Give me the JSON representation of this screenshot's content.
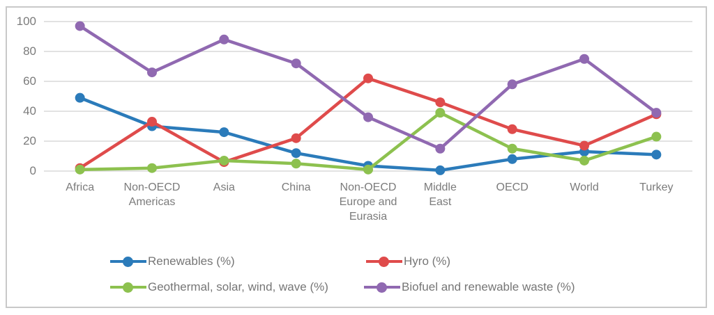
{
  "window": {
    "background_color": "#ffffff",
    "frame_border_color": "#c9c9c9"
  },
  "chart_data": {
    "type": "line",
    "title": "",
    "xlabel": "",
    "ylabel": "",
    "grid": "horizontal",
    "gridline_color": "#d9d9d9",
    "axis_text_color": "#7b7b7b",
    "legend_text_color": "#767676",
    "legend_position": "bottom",
    "y_axis": {
      "min": 0,
      "max": 100,
      "tick_interval": 20,
      "tick_labels": [
        "0",
        "20",
        "40",
        "60",
        "80",
        "100"
      ]
    },
    "categories": [
      "Africa",
      "Non-OECD Americas",
      "Asia",
      "China",
      "Non-OECD Europe and Eurasia",
      "Middle East",
      "OECD",
      "World",
      "Turkey"
    ],
    "category_label_lines": [
      [
        "Africa"
      ],
      [
        "Non-OECD",
        "Americas"
      ],
      [
        "Asia"
      ],
      [
        "China"
      ],
      [
        "Non-OECD",
        "Europe and",
        "Eurasia"
      ],
      [
        "Middle",
        "East"
      ],
      [
        "OECD"
      ],
      [
        "World"
      ],
      [
        "Turkey"
      ]
    ],
    "series": [
      {
        "name": "Renewables (%)",
        "color": "#2b7bba",
        "values": [
          49,
          30,
          26,
          12,
          3.5,
          0.5,
          8,
          13,
          11
        ]
      },
      {
        "name": "Hyro (%)",
        "color": "#df4b4b",
        "values": [
          2,
          33,
          6,
          22,
          62,
          46,
          28,
          17,
          38
        ]
      },
      {
        "name": "Geothermal, solar, wind, wave (%)",
        "color": "#8dc14f",
        "values": [
          1,
          2,
          7,
          5,
          1,
          39,
          15,
          7,
          23
        ]
      },
      {
        "name": "Biofuel and renewable waste (%)",
        "color": "#9069b1",
        "values": [
          97,
          66,
          88,
          72,
          36,
          15,
          58,
          75,
          39
        ]
      }
    ]
  }
}
